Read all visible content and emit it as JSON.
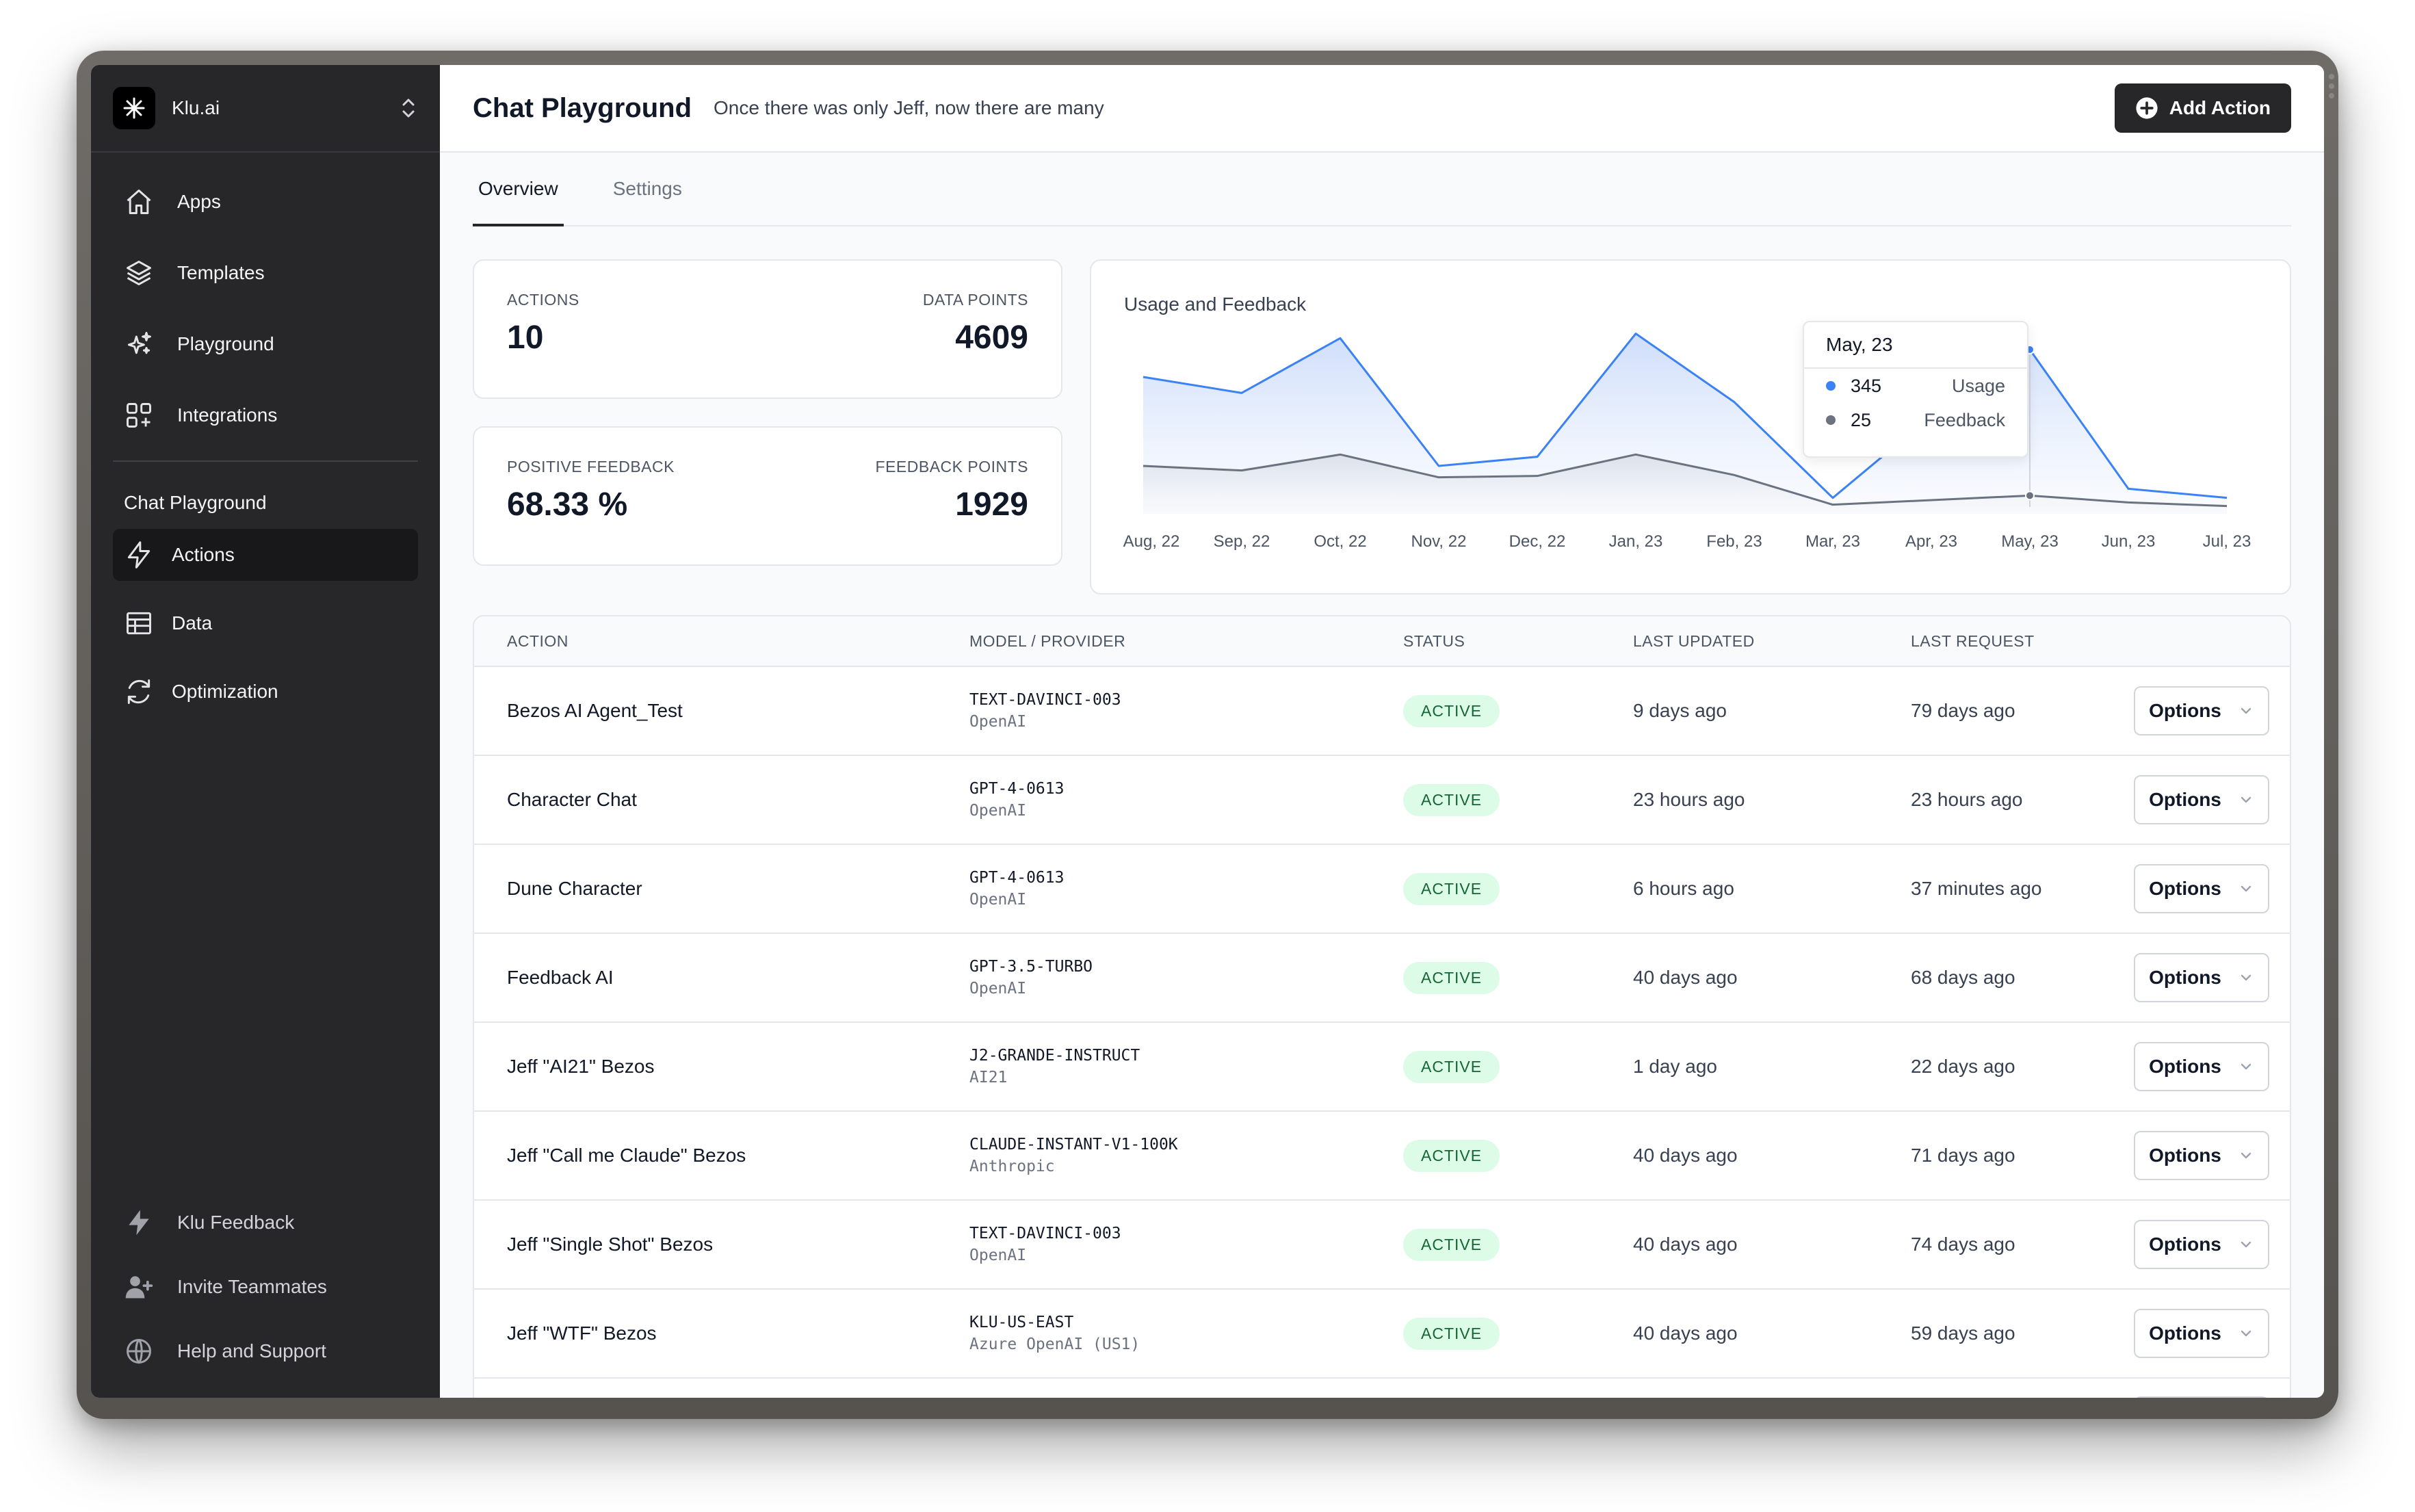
{
  "brand": {
    "name": "Klu.ai"
  },
  "sidebar": {
    "nav": [
      {
        "label": "Apps",
        "icon": "home-icon"
      },
      {
        "label": "Templates",
        "icon": "layers-icon"
      },
      {
        "label": "Playground",
        "icon": "sparkles-icon"
      },
      {
        "label": "Integrations",
        "icon": "grid-plus-icon"
      }
    ],
    "section_label": "Chat Playground",
    "sub_nav": [
      {
        "label": "Actions",
        "icon": "bolt-icon",
        "active": true
      },
      {
        "label": "Data",
        "icon": "table-icon",
        "active": false
      },
      {
        "label": "Optimization",
        "icon": "refresh-icon",
        "active": false
      }
    ],
    "bottom": [
      {
        "label": "Klu Feedback",
        "icon": "bolt-icon"
      },
      {
        "label": "Invite Teammates",
        "icon": "user-plus-icon"
      },
      {
        "label": "Help and Support",
        "icon": "globe-icon"
      }
    ]
  },
  "header": {
    "title": "Chat Playground",
    "subtitle": "Once there was only Jeff, now there are many",
    "add_action_label": "Add Action"
  },
  "tabs": [
    {
      "label": "Overview",
      "active": true
    },
    {
      "label": "Settings",
      "active": false
    }
  ],
  "stats": {
    "actions_label": "ACTIONS",
    "actions_value": "10",
    "data_points_label": "DATA POINTS",
    "data_points_value": "4609",
    "positive_feedback_label": "POSITIVE FEEDBACK",
    "positive_feedback_value": "68.33 %",
    "feedback_points_label": "FEEDBACK POINTS",
    "feedback_points_value": "1929"
  },
  "chart_data": {
    "type": "area",
    "title": "Usage and Feedback",
    "categories": [
      "Aug, 22",
      "Sep, 22",
      "Oct, 22",
      "Nov, 22",
      "Dec, 22",
      "Jan, 23",
      "Feb, 23",
      "Mar, 23",
      "Apr, 23",
      "May, 23",
      "Jun, 23",
      "Jul, 23"
    ],
    "series": [
      {
        "name": "Usage",
        "color": "#3b82f6",
        "values": [
          285,
          250,
          370,
          90,
          110,
          380,
          230,
          20,
          200,
          345,
          40,
          20
        ]
      },
      {
        "name": "Feedback",
        "color": "#6b7280",
        "values": [
          90,
          80,
          115,
          65,
          68,
          115,
          70,
          5,
          15,
          25,
          10,
          2
        ]
      }
    ],
    "ylim": [
      0,
      420
    ],
    "grid": false,
    "tooltip": {
      "title": "May, 23",
      "usage_value": "345",
      "usage_label": "Usage",
      "feedback_value": "25",
      "feedback_label": "Feedback"
    }
  },
  "table": {
    "headers": [
      "ACTION",
      "MODEL / PROVIDER",
      "STATUS",
      "LAST UPDATED",
      "LAST REQUEST"
    ],
    "options_label": "Options",
    "rows": [
      {
        "action": "Bezos AI Agent_Test",
        "model": "TEXT-DAVINCI-003",
        "provider": "OpenAI",
        "status": "ACTIVE",
        "updated": "9 days ago",
        "request": "79 days ago"
      },
      {
        "action": "Character Chat",
        "model": "GPT-4-0613",
        "provider": "OpenAI",
        "status": "ACTIVE",
        "updated": "23 hours ago",
        "request": "23 hours ago"
      },
      {
        "action": "Dune Character",
        "model": "GPT-4-0613",
        "provider": "OpenAI",
        "status": "ACTIVE",
        "updated": "6 hours ago",
        "request": "37 minutes ago"
      },
      {
        "action": "Feedback AI",
        "model": "GPT-3.5-TURBO",
        "provider": "OpenAI",
        "status": "ACTIVE",
        "updated": "40 days ago",
        "request": "68 days ago"
      },
      {
        "action": "Jeff \"AI21\" Bezos",
        "model": "J2-GRANDE-INSTRUCT",
        "provider": "AI21",
        "status": "ACTIVE",
        "updated": "1 day ago",
        "request": "22 days ago"
      },
      {
        "action": "Jeff \"Call me Claude\" Bezos",
        "model": "CLAUDE-INSTANT-V1-100K",
        "provider": "Anthropic",
        "status": "ACTIVE",
        "updated": "40 days ago",
        "request": "71 days ago"
      },
      {
        "action": "Jeff \"Single Shot\" Bezos",
        "model": "TEXT-DAVINCI-003",
        "provider": "OpenAI",
        "status": "ACTIVE",
        "updated": "40 days ago",
        "request": "74 days ago"
      },
      {
        "action": "Jeff \"WTF\" Bezos",
        "model": "KLU-US-EAST",
        "provider": "Azure OpenAI (US1)",
        "status": "ACTIVE",
        "updated": "40 days ago",
        "request": "59 days ago"
      }
    ]
  }
}
